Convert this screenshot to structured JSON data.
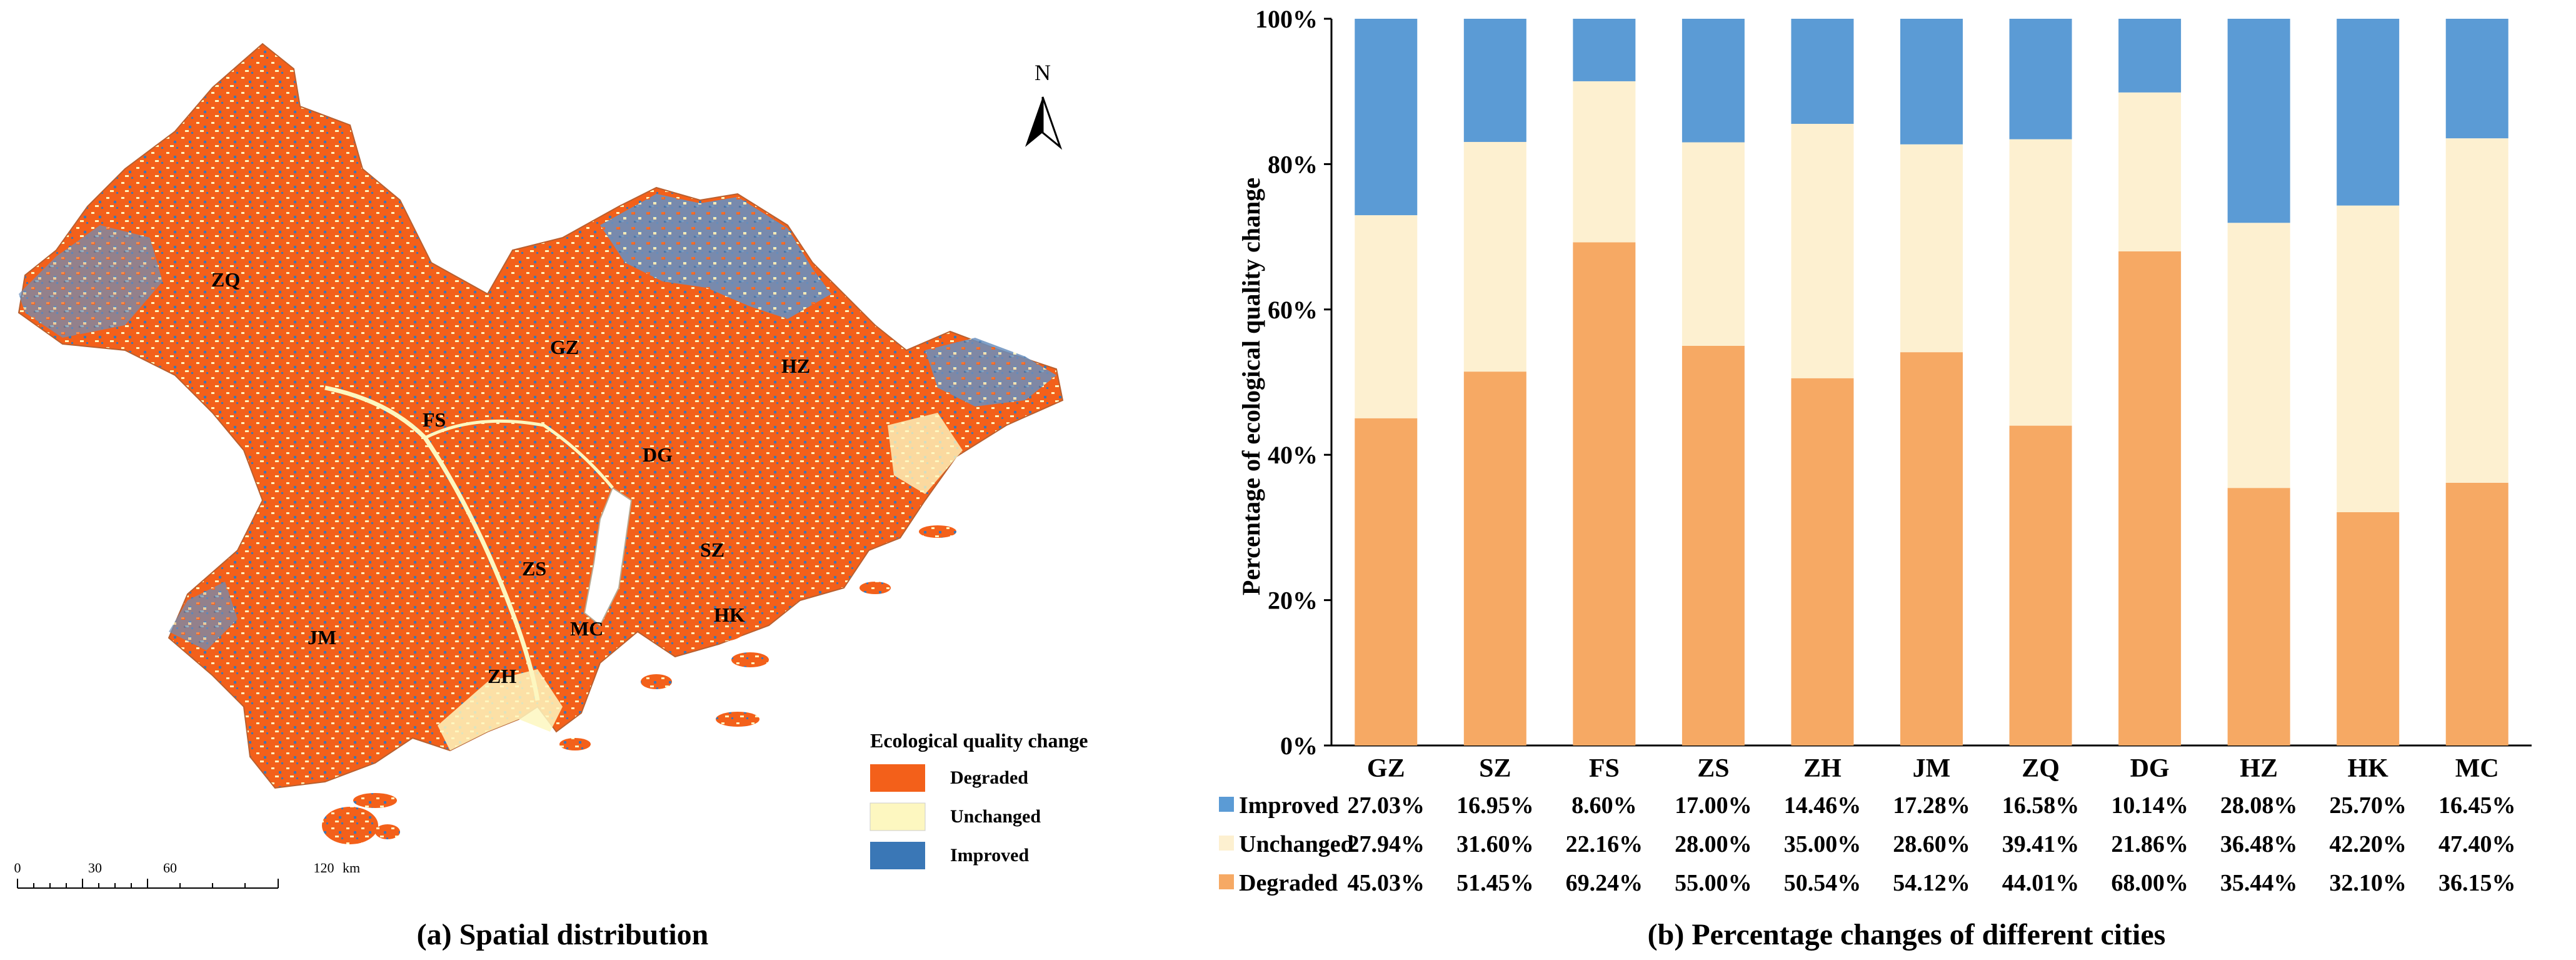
{
  "colors": {
    "degraded_map": "#f3601a",
    "unchanged_map": "#fdf7c0",
    "improved_map": "#3a77b6",
    "degraded_bar": "#f6a964",
    "unchanged_bar": "#fdf0d0",
    "improved_bar": "#5b9bd5"
  },
  "map": {
    "caption": "(a) Spatial distribution",
    "north": "N",
    "cities": [
      "ZQ",
      "GZ",
      "FS",
      "HZ",
      "DG",
      "SZ",
      "ZS",
      "JM",
      "MC",
      "HK",
      "ZH"
    ],
    "legend": {
      "title": "Ecological quality change",
      "items": [
        "Degraded",
        "Unchanged",
        "Improved"
      ]
    },
    "scale": {
      "ticks": [
        "0",
        "30",
        "60",
        "120"
      ],
      "unit": "km"
    }
  },
  "chart_data": {
    "type": "bar",
    "stacked": true,
    "title": "(b) Percentage changes of different cities",
    "xlabel": "",
    "ylabel": "Percentage of ecological quality change",
    "ylim": [
      0,
      100
    ],
    "yticks": [
      "0%",
      "20%",
      "40%",
      "60%",
      "80%",
      "100%"
    ],
    "categories": [
      "GZ",
      "SZ",
      "FS",
      "ZS",
      "ZH",
      "JM",
      "ZQ",
      "DG",
      "HZ",
      "HK",
      "MC"
    ],
    "series": [
      {
        "name": "Degraded",
        "values": [
          45.03,
          51.45,
          69.24,
          55.0,
          50.54,
          54.12,
          44.01,
          68.0,
          35.44,
          32.1,
          36.15
        ],
        "labels": [
          "45.03%",
          "51.45%",
          "69.24%",
          "55.00%",
          "50.54%",
          "54.12%",
          "44.01%",
          "68.00%",
          "35.44%",
          "32.10%",
          "36.15%"
        ]
      },
      {
        "name": "Unchanged",
        "values": [
          27.94,
          31.6,
          22.16,
          28.0,
          35.0,
          28.6,
          39.41,
          21.86,
          36.48,
          42.2,
          47.4
        ],
        "labels": [
          "27.94%",
          "31.60%",
          "22.16%",
          "28.00%",
          "35.00%",
          "28.60%",
          "39.41%",
          "21.86%",
          "36.48%",
          "42.20%",
          "47.40%"
        ]
      },
      {
        "name": "Improved",
        "values": [
          27.03,
          16.95,
          8.6,
          17.0,
          14.46,
          17.28,
          16.58,
          10.14,
          28.08,
          25.7,
          16.45
        ],
        "labels": [
          "27.03%",
          "16.95%",
          "8.60%",
          "17.00%",
          "14.46%",
          "17.28%",
          "16.58%",
          "10.14%",
          "28.08%",
          "25.70%",
          "16.45%"
        ]
      }
    ],
    "table_rows": [
      "Improved",
      "Unchanged",
      "Degraded"
    ],
    "grid": false,
    "legend": "table-below"
  }
}
